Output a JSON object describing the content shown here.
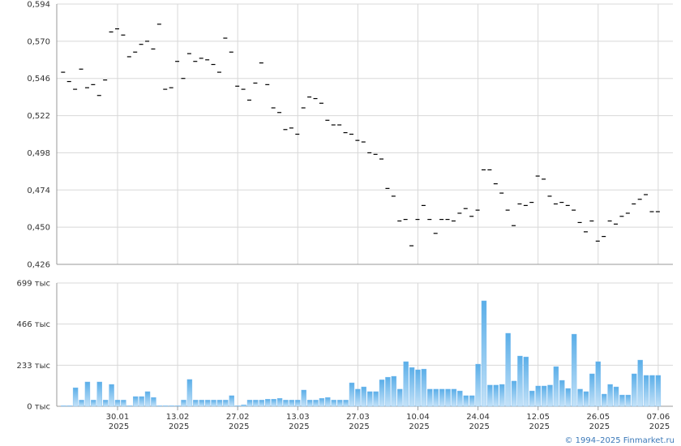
{
  "chart_data": [
    {
      "type": "tick",
      "color": "#000000",
      "ylim": [
        0.426,
        0.594
      ],
      "yticks": [
        {
          "value": 0.426,
          "label": "0,426"
        },
        {
          "value": 0.45,
          "label": "0,450"
        },
        {
          "value": 0.474,
          "label": "0,474"
        },
        {
          "value": 0.498,
          "label": "0,498"
        },
        {
          "value": 0.522,
          "label": "0,522"
        },
        {
          "value": 0.546,
          "label": "0,546"
        },
        {
          "value": 0.57,
          "label": "0,570"
        },
        {
          "value": 0.594,
          "label": "0,594"
        }
      ],
      "grid": true,
      "values": [
        0.55,
        0.544,
        0.539,
        0.552,
        0.54,
        0.542,
        0.535,
        0.545,
        0.576,
        0.578,
        0.574,
        0.56,
        0.563,
        0.568,
        0.57,
        0.565,
        0.581,
        0.539,
        0.54,
        0.557,
        0.546,
        0.562,
        0.557,
        0.559,
        0.558,
        0.555,
        0.55,
        0.572,
        0.563,
        0.541,
        0.539,
        0.532,
        0.543,
        0.556,
        0.542,
        0.527,
        0.524,
        0.513,
        0.514,
        0.51,
        0.527,
        0.534,
        0.533,
        0.53,
        0.519,
        0.516,
        0.516,
        0.511,
        0.51,
        0.506,
        0.505,
        0.498,
        0.497,
        0.494,
        0.475,
        0.47,
        0.454,
        0.455,
        0.438,
        0.455,
        0.464,
        0.455,
        0.446,
        0.455,
        0.455,
        0.454,
        0.459,
        0.462,
        0.457,
        0.461,
        0.487,
        0.487,
        0.478,
        0.472,
        0.461,
        0.451,
        0.465,
        0.464,
        0.466,
        0.483,
        0.481,
        0.47,
        0.465,
        0.466,
        0.464,
        0.461,
        0.453,
        0.447,
        0.454,
        0.441,
        0.444,
        0.454,
        0.452,
        0.457,
        0.459,
        0.465,
        0.468,
        0.471,
        0.46,
        0.46
      ]
    },
    {
      "type": "bar",
      "color": "#7dbdf0",
      "ylim": [
        0,
        699
      ],
      "yticks": [
        {
          "value": 0,
          "label": "0 тыс"
        },
        {
          "value": 233,
          "label": "233 тыс"
        },
        {
          "value": 466,
          "label": "466 тыс"
        },
        {
          "value": 699,
          "label": "699 тыс"
        }
      ],
      "grid": true,
      "categories": [
        null,
        null,
        null,
        null,
        null,
        null,
        null,
        null,
        null,
        "30.01 2025",
        null,
        null,
        null,
        null,
        null,
        null,
        null,
        null,
        null,
        "13.02 2025",
        null,
        null,
        null,
        null,
        null,
        null,
        null,
        null,
        null,
        "27.02 2025",
        null,
        null,
        null,
        null,
        null,
        null,
        null,
        null,
        null,
        "13.03 2025",
        null,
        null,
        null,
        null,
        null,
        null,
        null,
        null,
        null,
        "27.03 2025",
        null,
        null,
        null,
        null,
        null,
        null,
        null,
        null,
        null,
        "10.04 2025",
        null,
        null,
        null,
        null,
        null,
        null,
        null,
        null,
        null,
        "24.04 2025",
        null,
        null,
        null,
        null,
        null,
        null,
        null,
        null,
        null,
        "12.05 2025",
        null,
        null,
        null,
        null,
        null,
        null,
        null,
        null,
        null,
        "26.05 2025",
        null,
        null,
        null,
        null,
        null,
        null,
        null,
        null,
        null,
        "07.06 2025"
      ],
      "values": [
        3,
        3,
        105,
        35,
        138,
        35,
        138,
        35,
        124,
        35,
        35,
        3,
        55,
        55,
        83,
        50,
        3,
        3,
        3,
        3,
        35,
        152,
        35,
        35,
        35,
        35,
        35,
        35,
        60,
        3,
        8,
        35,
        35,
        35,
        40,
        40,
        45,
        35,
        35,
        35,
        92,
        35,
        35,
        45,
        50,
        35,
        35,
        35,
        133,
        97,
        110,
        83,
        83,
        150,
        165,
        170,
        97,
        253,
        220,
        207,
        211,
        97,
        97,
        97,
        97,
        97,
        87,
        60,
        60,
        239,
        598,
        120,
        120,
        124,
        414,
        143,
        285,
        280,
        87,
        115,
        115,
        120,
        225,
        147,
        101,
        409,
        97,
        83,
        184,
        253,
        69,
        124,
        110,
        64,
        64,
        184,
        262,
        175,
        175,
        175
      ]
    }
  ],
  "footer": "© 1994–2025 Finmarket.ru"
}
